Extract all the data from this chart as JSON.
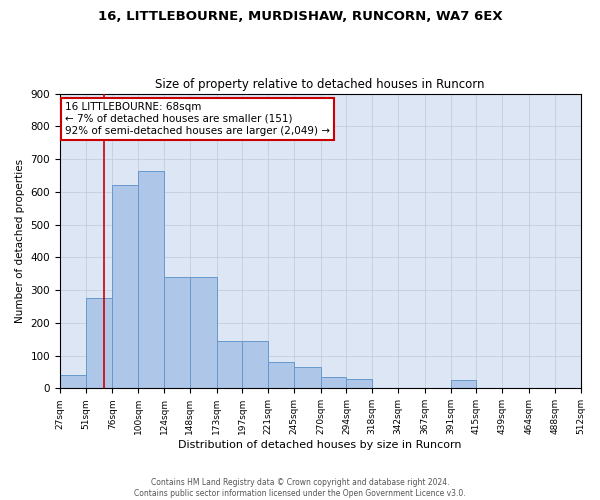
{
  "title1": "16, LITTLEBOURNE, MURDISHAW, RUNCORN, WA7 6EX",
  "title2": "Size of property relative to detached houses in Runcorn",
  "xlabel": "Distribution of detached houses by size in Runcorn",
  "ylabel": "Number of detached properties",
  "footer1": "Contains HM Land Registry data © Crown copyright and database right 2024.",
  "footer2": "Contains public sector information licensed under the Open Government Licence v3.0.",
  "annotation_title": "16 LITTLEBOURNE: 68sqm",
  "annotation_line1": "← 7% of detached houses are smaller (151)",
  "annotation_line2": "92% of semi-detached houses are larger (2,049) →",
  "property_size": 68,
  "bar_edges": [
    27,
    51,
    76,
    100,
    124,
    148,
    173,
    197,
    221,
    245,
    270,
    294,
    318,
    342,
    367,
    391,
    415,
    439,
    464,
    488,
    512
  ],
  "bar_heights": [
    40,
    275,
    620,
    665,
    340,
    340,
    145,
    145,
    80,
    65,
    35,
    30,
    0,
    0,
    0,
    25,
    0,
    0,
    0,
    0
  ],
  "bar_color": "#aec6e8",
  "bar_edge_color": "#6699cc",
  "vline_color": "#cc0000",
  "annotation_box_color": "#cc0000",
  "grid_color": "#c0c8d8",
  "background_color": "#dce6f5",
  "ylim": [
    0,
    900
  ],
  "yticks": [
    0,
    100,
    200,
    300,
    400,
    500,
    600,
    700,
    800,
    900
  ]
}
